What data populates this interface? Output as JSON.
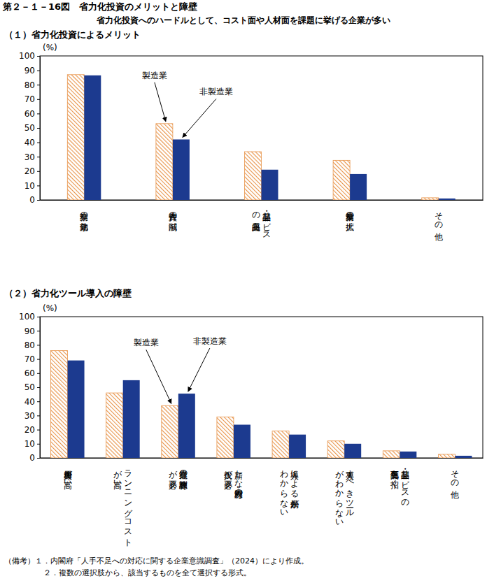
{
  "figure": {
    "title": "第２－１－16図　省力化投資のメリットと障壁",
    "subtitle": "省力化投資へのハードルとして、コスト面や人材面を課題に挙げる企業が多い",
    "notes": [
      "（備考）１．内閣府「人手不足への対応に関する企業意識調査」（2024）により作成。",
      "２．複数の選択肢から、該当するものを全て選択する形式。"
    ]
  },
  "chart_data": [
    {
      "type": "bar",
      "title": "（１）省力化投資によるメリット",
      "y_label": "(%)",
      "categories": [
        "業務の効率化",
        "人件費の削減",
        "製品・サービス\nの品質向上",
        "業務量の拡大",
        "その他"
      ],
      "series": [
        {
          "name": "製造業",
          "color": "#e8944a",
          "values": [
            87,
            53,
            33.5,
            27.5,
            1.5
          ]
        },
        {
          "name": "非製造業",
          "color": "#1c3a8f",
          "values": [
            86.5,
            42,
            21,
            18,
            1
          ]
        }
      ],
      "ylim": [
        0,
        100
      ],
      "yticks": [
        0,
        10,
        20,
        30,
        40,
        50,
        60,
        70,
        80,
        90,
        100
      ],
      "grid": false
    },
    {
      "type": "bar",
      "title": "（２）省力化ツール導入の障壁",
      "y_label": "(%)",
      "categories": [
        "導入費用が高い",
        "ランニングコスト\nが高い",
        "従業員の教育訓練\nが必要",
        "新たな専門人材の\n投入が必要",
        "導入による効果が\nわからない",
        "導入すべきツール\nがわからない",
        "製品・サービスの\n品質低下を招く",
        "その他"
      ],
      "series": [
        {
          "name": "製造業",
          "color": "#e8944a",
          "values": [
            76,
            46,
            37,
            29,
            19,
            12,
            5,
            2.5
          ]
        },
        {
          "name": "非製造業",
          "color": "#1c3a8f",
          "values": [
            69,
            55,
            45.5,
            23.5,
            16.5,
            10,
            4.5,
            1.5
          ]
        }
      ],
      "ylim": [
        0,
        100
      ],
      "yticks": [
        0,
        10,
        20,
        30,
        40,
        50,
        60,
        70,
        80,
        90,
        100
      ],
      "grid": false
    }
  ]
}
